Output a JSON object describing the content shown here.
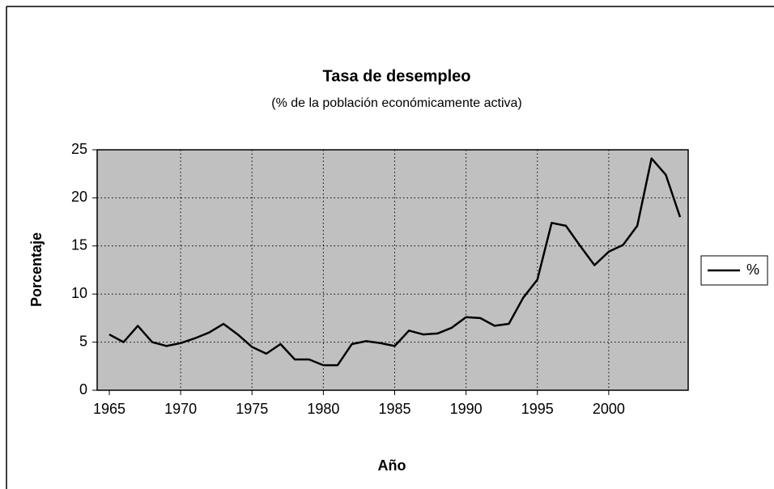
{
  "chart_data": {
    "type": "line",
    "title": "Tasa de desempleo",
    "subtitle": "(% de la población económicamente activa)",
    "x_label": "Año",
    "y_label": "Porcentaje",
    "categories": [
      "1965",
      null,
      null,
      null,
      null,
      "1970",
      null,
      null,
      null,
      null,
      "1975",
      null,
      null,
      null,
      null,
      "1980",
      null,
      null,
      null,
      null,
      "1985",
      null,
      null,
      null,
      null,
      "1990",
      null,
      null,
      null,
      null,
      "1995",
      null,
      null,
      null,
      null,
      "2000",
      null,
      null,
      null,
      null,
      null
    ],
    "series": [
      {
        "name": "%",
        "color": "#000000",
        "values": [
          5.8,
          5.0,
          6.7,
          5.0,
          4.6,
          4.9,
          5.4,
          6.0,
          6.9,
          5.8,
          4.5,
          3.8,
          4.8,
          3.2,
          3.2,
          2.6,
          2.6,
          4.8,
          5.1,
          4.9,
          4.6,
          6.2,
          5.8,
          5.9,
          6.5,
          7.6,
          7.5,
          6.7,
          6.9,
          9.6,
          11.5,
          17.4,
          17.1,
          15.0,
          13.0,
          14.4,
          15.1,
          17.1,
          24.1,
          22.4,
          18.0
        ]
      }
    ],
    "ylim": [
      0,
      25
    ],
    "yticks": [
      0,
      5,
      10,
      15,
      20,
      25
    ],
    "grid": true,
    "legend": "right",
    "plot_background": "#c0c0c0"
  }
}
